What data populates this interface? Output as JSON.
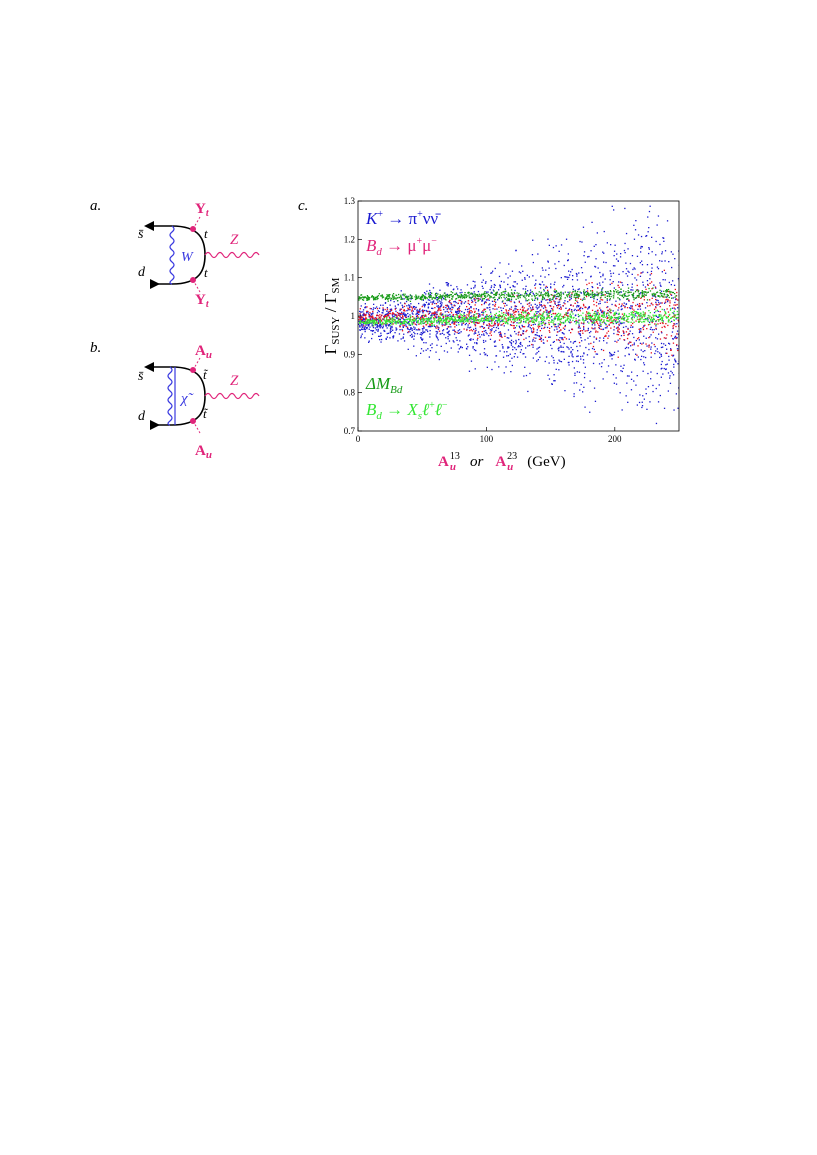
{
  "panels": {
    "a": {
      "label": "a.",
      "antiquark": "s̄",
      "quark": "d",
      "loop_boson": "W",
      "top_upper": "t",
      "top_lower": "t",
      "coupling_upper": "Y",
      "coupling_upper_sub": "t",
      "coupling_lower": "Y",
      "coupling_lower_sub": "t",
      "z_boson": "Z"
    },
    "b": {
      "label": "b.",
      "antiquark": "s̄",
      "quark": "d",
      "loop_particle": "χ̃",
      "stop_upper": "t̃",
      "stop_lower": "t̃",
      "coupling_upper": "A",
      "coupling_upper_sub": "u",
      "coupling_lower": "A",
      "coupling_lower_sub": "u",
      "z_boson": "Z"
    },
    "c": {
      "label": "c."
    }
  },
  "colors": {
    "pink": "#e0247a",
    "blue": "#1a1ad0",
    "red": "#e8101e",
    "dark_green": "#159a15",
    "light_green": "#33e633",
    "diagram_blue": "#3a3ae0"
  },
  "chart_data": {
    "type": "scatter",
    "xlim": [
      0,
      250
    ],
    "ylim": [
      0.7,
      1.3
    ],
    "x_ticks": [
      "0",
      "100",
      "200"
    ],
    "x_tick_values": [
      0,
      100,
      200
    ],
    "y_ticks": [
      "0.7",
      "0.8",
      "0.9",
      "1",
      "1.1",
      "1.2",
      "1.3"
    ],
    "y_tick_values": [
      0.7,
      0.8,
      0.9,
      1.0,
      1.1,
      1.2,
      1.3
    ],
    "ylabel": {
      "main": "Γ",
      "sub1": "SUSY",
      "slash": " / ",
      "main2": "Γ",
      "sub2": "SM"
    },
    "xlabel": {
      "a13": "A",
      "a13_sub": "u",
      "a13_sup": "13",
      "or": "or",
      "a23": "A",
      "a23_sub": "u",
      "a23_sup": "23",
      "unit": "(GeV)"
    },
    "series": [
      {
        "name": "K⁺ → π⁺νν̄",
        "color": "#1a1ad0",
        "band_center": [
          [
            0,
            0.985
          ],
          [
            100,
            1.0
          ],
          [
            250,
            1.0
          ]
        ],
        "band_halfwidth": [
          [
            0,
            0.04
          ],
          [
            100,
            0.12
          ],
          [
            250,
            0.29
          ]
        ]
      },
      {
        "name": "B_d → μ⁺μ⁻",
        "color": "#e8101e",
        "band_center": [
          [
            0,
            1.0
          ],
          [
            100,
            1.0
          ],
          [
            250,
            1.0
          ]
        ],
        "band_halfwidth": [
          [
            0,
            0.02
          ],
          [
            100,
            0.05
          ],
          [
            250,
            0.11
          ]
        ]
      },
      {
        "name": "ΔM_Bd",
        "color": "#159a15",
        "band_center": [
          [
            0,
            1.048
          ],
          [
            100,
            1.055
          ],
          [
            250,
            1.06
          ]
        ],
        "band_halfwidth": [
          [
            0,
            0.008
          ],
          [
            100,
            0.012
          ],
          [
            250,
            0.015
          ]
        ]
      },
      {
        "name": "B_d → X_s ℓ⁺ℓ⁻",
        "color": "#33e633",
        "band_center": [
          [
            0,
            0.985
          ],
          [
            100,
            0.995
          ],
          [
            250,
            1.0
          ]
        ],
        "band_halfwidth": [
          [
            0,
            0.008
          ],
          [
            100,
            0.015
          ],
          [
            250,
            0.02
          ]
        ]
      }
    ],
    "legend": {
      "k_main": "K",
      "k_sup": "+",
      "k_arrow": " → ",
      "k_pi": "π",
      "k_pi_sup": "+",
      "k_nu": "νν̄",
      "b_main": "B",
      "b_sub": "d",
      "b_arrow": " → ",
      "b_mu": "μ",
      "b_mu_sup": "+",
      "b_mu2": "μ",
      "b_mu2_sup": "−",
      "dm_delta": "ΔM",
      "dm_sub": "Bd",
      "bx_main": "B",
      "bx_sub": "d",
      "bx_arrow": " → ",
      "bx_x": "X",
      "bx_x_sub": "s",
      "bx_l": "ℓ",
      "bx_l_sup": "+",
      "bx_l2": "ℓ",
      "bx_l2_sup": "−"
    }
  }
}
